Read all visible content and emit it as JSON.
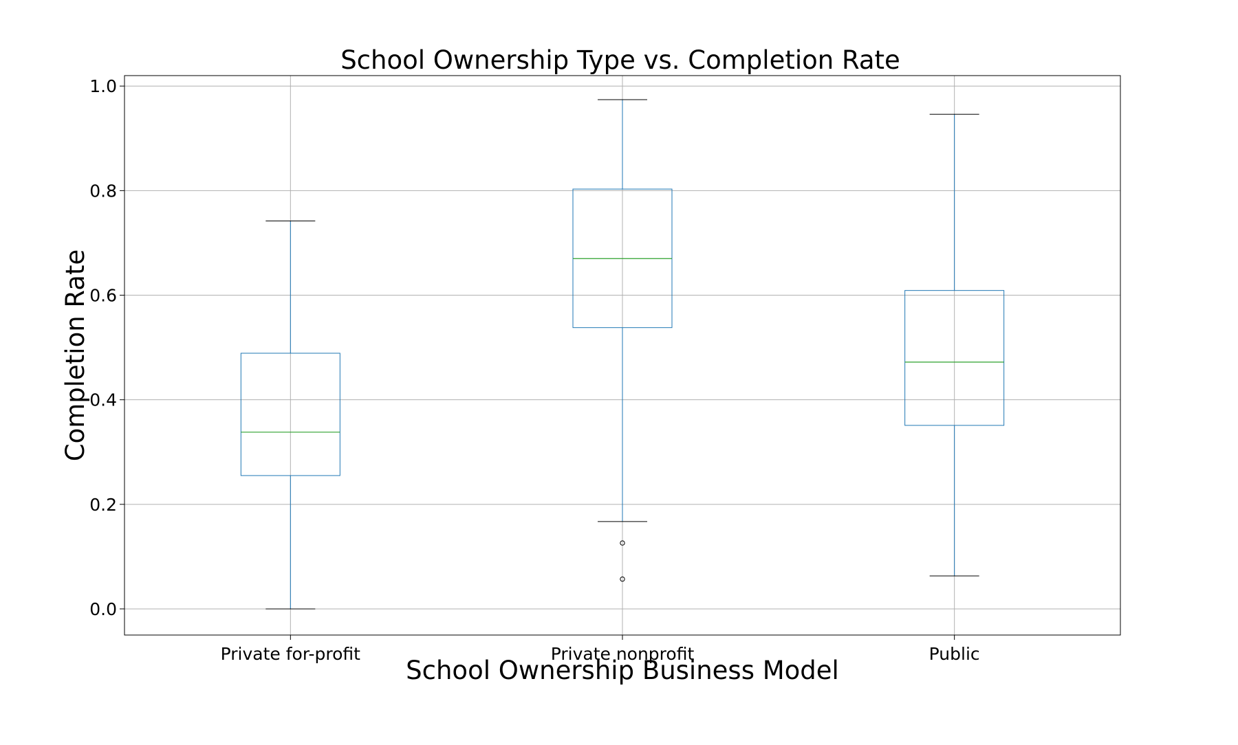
{
  "chart_data": {
    "type": "box",
    "title": "School Ownership Type vs. Completion Rate",
    "xlabel": "School Ownership Business Model",
    "ylabel": "Completion Rate",
    "categories": [
      "Private for-profit",
      "Private nonprofit",
      "Public"
    ],
    "ylim": [
      -0.05,
      1.02
    ],
    "yticks": [
      0.0,
      0.2,
      0.4,
      0.6,
      0.8,
      1.0
    ],
    "ytick_labels": [
      "0.0",
      "0.2",
      "0.4",
      "0.6",
      "0.8",
      "1.0"
    ],
    "grid": true,
    "boxes": [
      {
        "category": "Private for-profit",
        "whisker_low": 0.0,
        "q1": 0.255,
        "median": 0.338,
        "q3": 0.489,
        "whisker_high": 0.742,
        "outliers": []
      },
      {
        "category": "Private nonprofit",
        "whisker_low": 0.167,
        "q1": 0.538,
        "median": 0.67,
        "q3": 0.803,
        "whisker_high": 0.974,
        "outliers": [
          0.126,
          0.057
        ]
      },
      {
        "category": "Public",
        "whisker_low": 0.063,
        "q1": 0.351,
        "median": 0.472,
        "q3": 0.609,
        "whisker_high": 0.946,
        "outliers": []
      }
    ],
    "colors": {
      "box": "#1f77b4",
      "median": "#2ca02c",
      "cap": "#000000",
      "grid": "#b0b0b0",
      "frame": "#000000"
    }
  }
}
